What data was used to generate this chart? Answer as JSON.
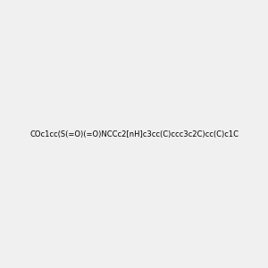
{
  "smiles": "COc1cc(S(=O)(=O)NCCc2[nH]c3cc(C)ccc3c2C)cc(C)c1C",
  "image_size": 300,
  "background_color": "#f0f0f0",
  "bond_color": "#000000",
  "atom_colors": {
    "N": "#0000FF",
    "O": "#FF0000",
    "S": "#CCCC00"
  },
  "title": ""
}
